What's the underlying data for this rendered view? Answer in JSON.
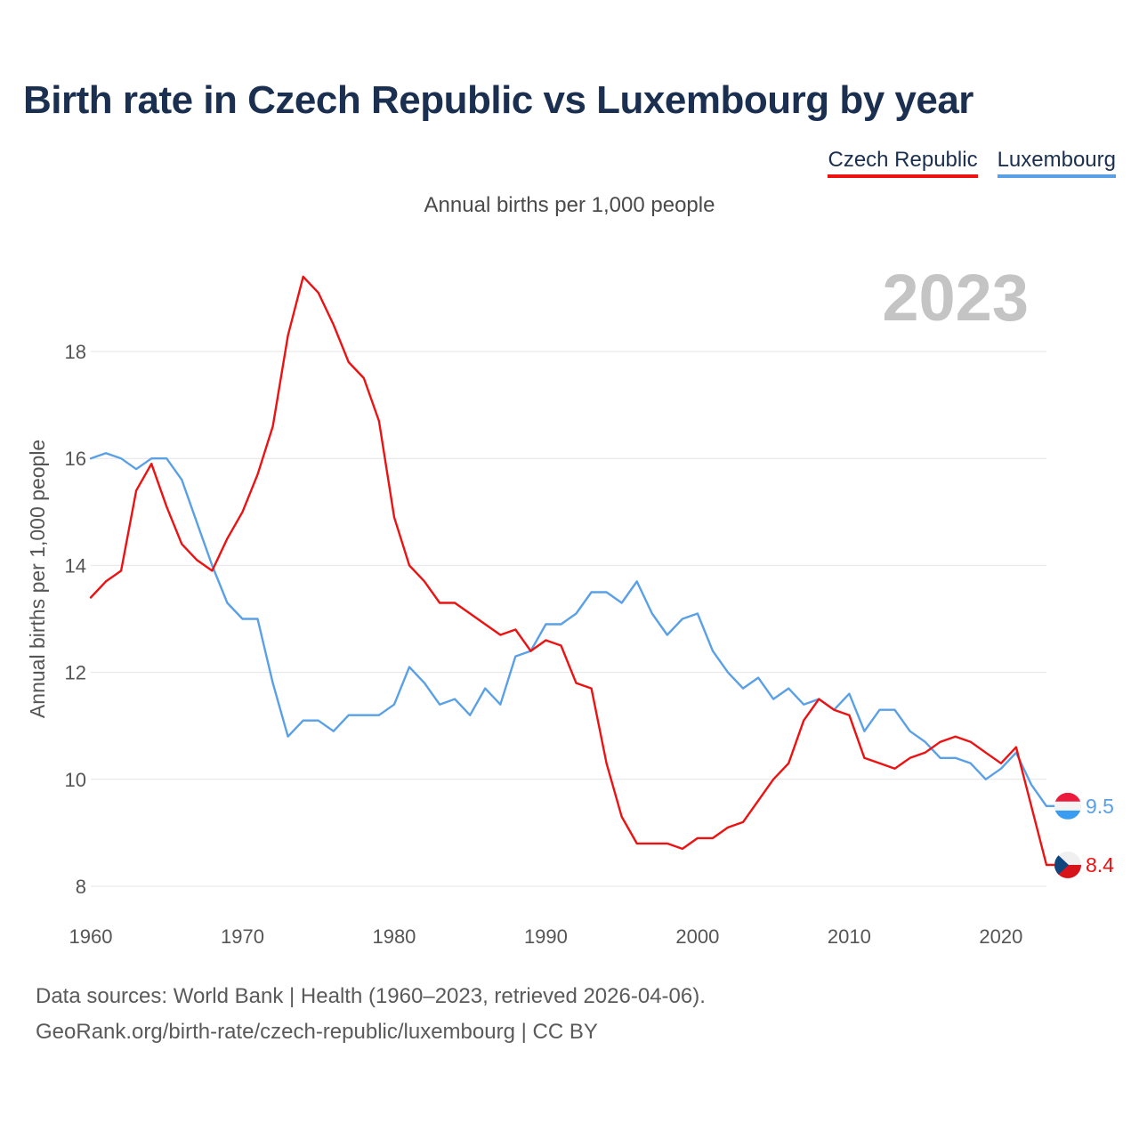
{
  "title": "Birth rate in Czech Republic vs Luxembourg by year",
  "subtitle": "Annual births per 1,000 people",
  "current_year": "2023",
  "footer": {
    "line1": "Data sources: World Bank | Health (1960–2023, retrieved 2026-04-06).",
    "line2": "GeoRank.org/birth-rate/czech-republic/luxembourg | CC BY"
  },
  "chart_data": {
    "type": "line",
    "title": "Birth rate in Czech Republic vs Luxembourg by year",
    "subtitle": "Annual births per 1,000 people",
    "xlabel": "",
    "ylabel": "Annual births per 1,000 people",
    "xlim": [
      1960,
      2023
    ],
    "ylim": [
      8,
      19.5
    ],
    "x_ticks": [
      1960,
      1970,
      1980,
      1990,
      2000,
      2010,
      2020
    ],
    "y_ticks": [
      8,
      10,
      12,
      14,
      16,
      18
    ],
    "grid": true,
    "legend_position": "top-right",
    "x": [
      1960,
      1961,
      1962,
      1963,
      1964,
      1965,
      1966,
      1967,
      1968,
      1969,
      1970,
      1971,
      1972,
      1973,
      1974,
      1975,
      1976,
      1977,
      1978,
      1979,
      1980,
      1981,
      1982,
      1983,
      1984,
      1985,
      1986,
      1987,
      1988,
      1989,
      1990,
      1991,
      1992,
      1993,
      1994,
      1995,
      1996,
      1997,
      1998,
      1999,
      2000,
      2001,
      2002,
      2003,
      2004,
      2005,
      2006,
      2007,
      2008,
      2009,
      2010,
      2011,
      2012,
      2013,
      2014,
      2015,
      2016,
      2017,
      2018,
      2019,
      2020,
      2021,
      2022,
      2023
    ],
    "series": [
      {
        "name": "Czech Republic",
        "color": "#ee1111",
        "end_label": "8.4",
        "values": [
          13.4,
          13.7,
          13.9,
          15.4,
          15.9,
          15.1,
          14.4,
          14.1,
          13.9,
          14.5,
          15.0,
          15.7,
          16.6,
          18.3,
          19.4,
          19.1,
          18.5,
          17.8,
          17.5,
          16.7,
          14.9,
          14.0,
          13.7,
          13.3,
          13.3,
          13.1,
          12.9,
          12.7,
          12.8,
          12.4,
          12.6,
          12.5,
          11.8,
          11.7,
          10.3,
          9.3,
          8.8,
          8.8,
          8.8,
          8.7,
          8.9,
          8.9,
          9.1,
          9.2,
          9.6,
          10.0,
          10.3,
          11.1,
          11.5,
          11.3,
          11.2,
          10.4,
          10.3,
          10.2,
          10.4,
          10.5,
          10.7,
          10.8,
          10.7,
          10.5,
          10.3,
          10.6,
          9.5,
          8.4
        ]
      },
      {
        "name": "Luxembourg",
        "color": "#5aa0e6",
        "end_label": "9.5",
        "values": [
          16.0,
          16.1,
          16.0,
          15.8,
          16.0,
          16.0,
          15.6,
          14.8,
          14.0,
          13.3,
          13.0,
          13.0,
          11.8,
          10.8,
          11.1,
          11.1,
          10.9,
          11.2,
          11.2,
          11.2,
          11.4,
          12.1,
          11.8,
          11.4,
          11.5,
          11.2,
          11.7,
          11.4,
          12.3,
          12.4,
          12.9,
          12.9,
          13.1,
          13.5,
          13.5,
          13.3,
          13.7,
          13.1,
          12.7,
          13.0,
          13.1,
          12.4,
          12.0,
          11.7,
          11.9,
          11.5,
          11.7,
          11.4,
          11.5,
          11.3,
          11.6,
          10.9,
          11.3,
          11.3,
          10.9,
          10.7,
          10.4,
          10.4,
          10.3,
          10.0,
          10.2,
          10.5,
          9.9,
          9.5
        ]
      }
    ]
  }
}
